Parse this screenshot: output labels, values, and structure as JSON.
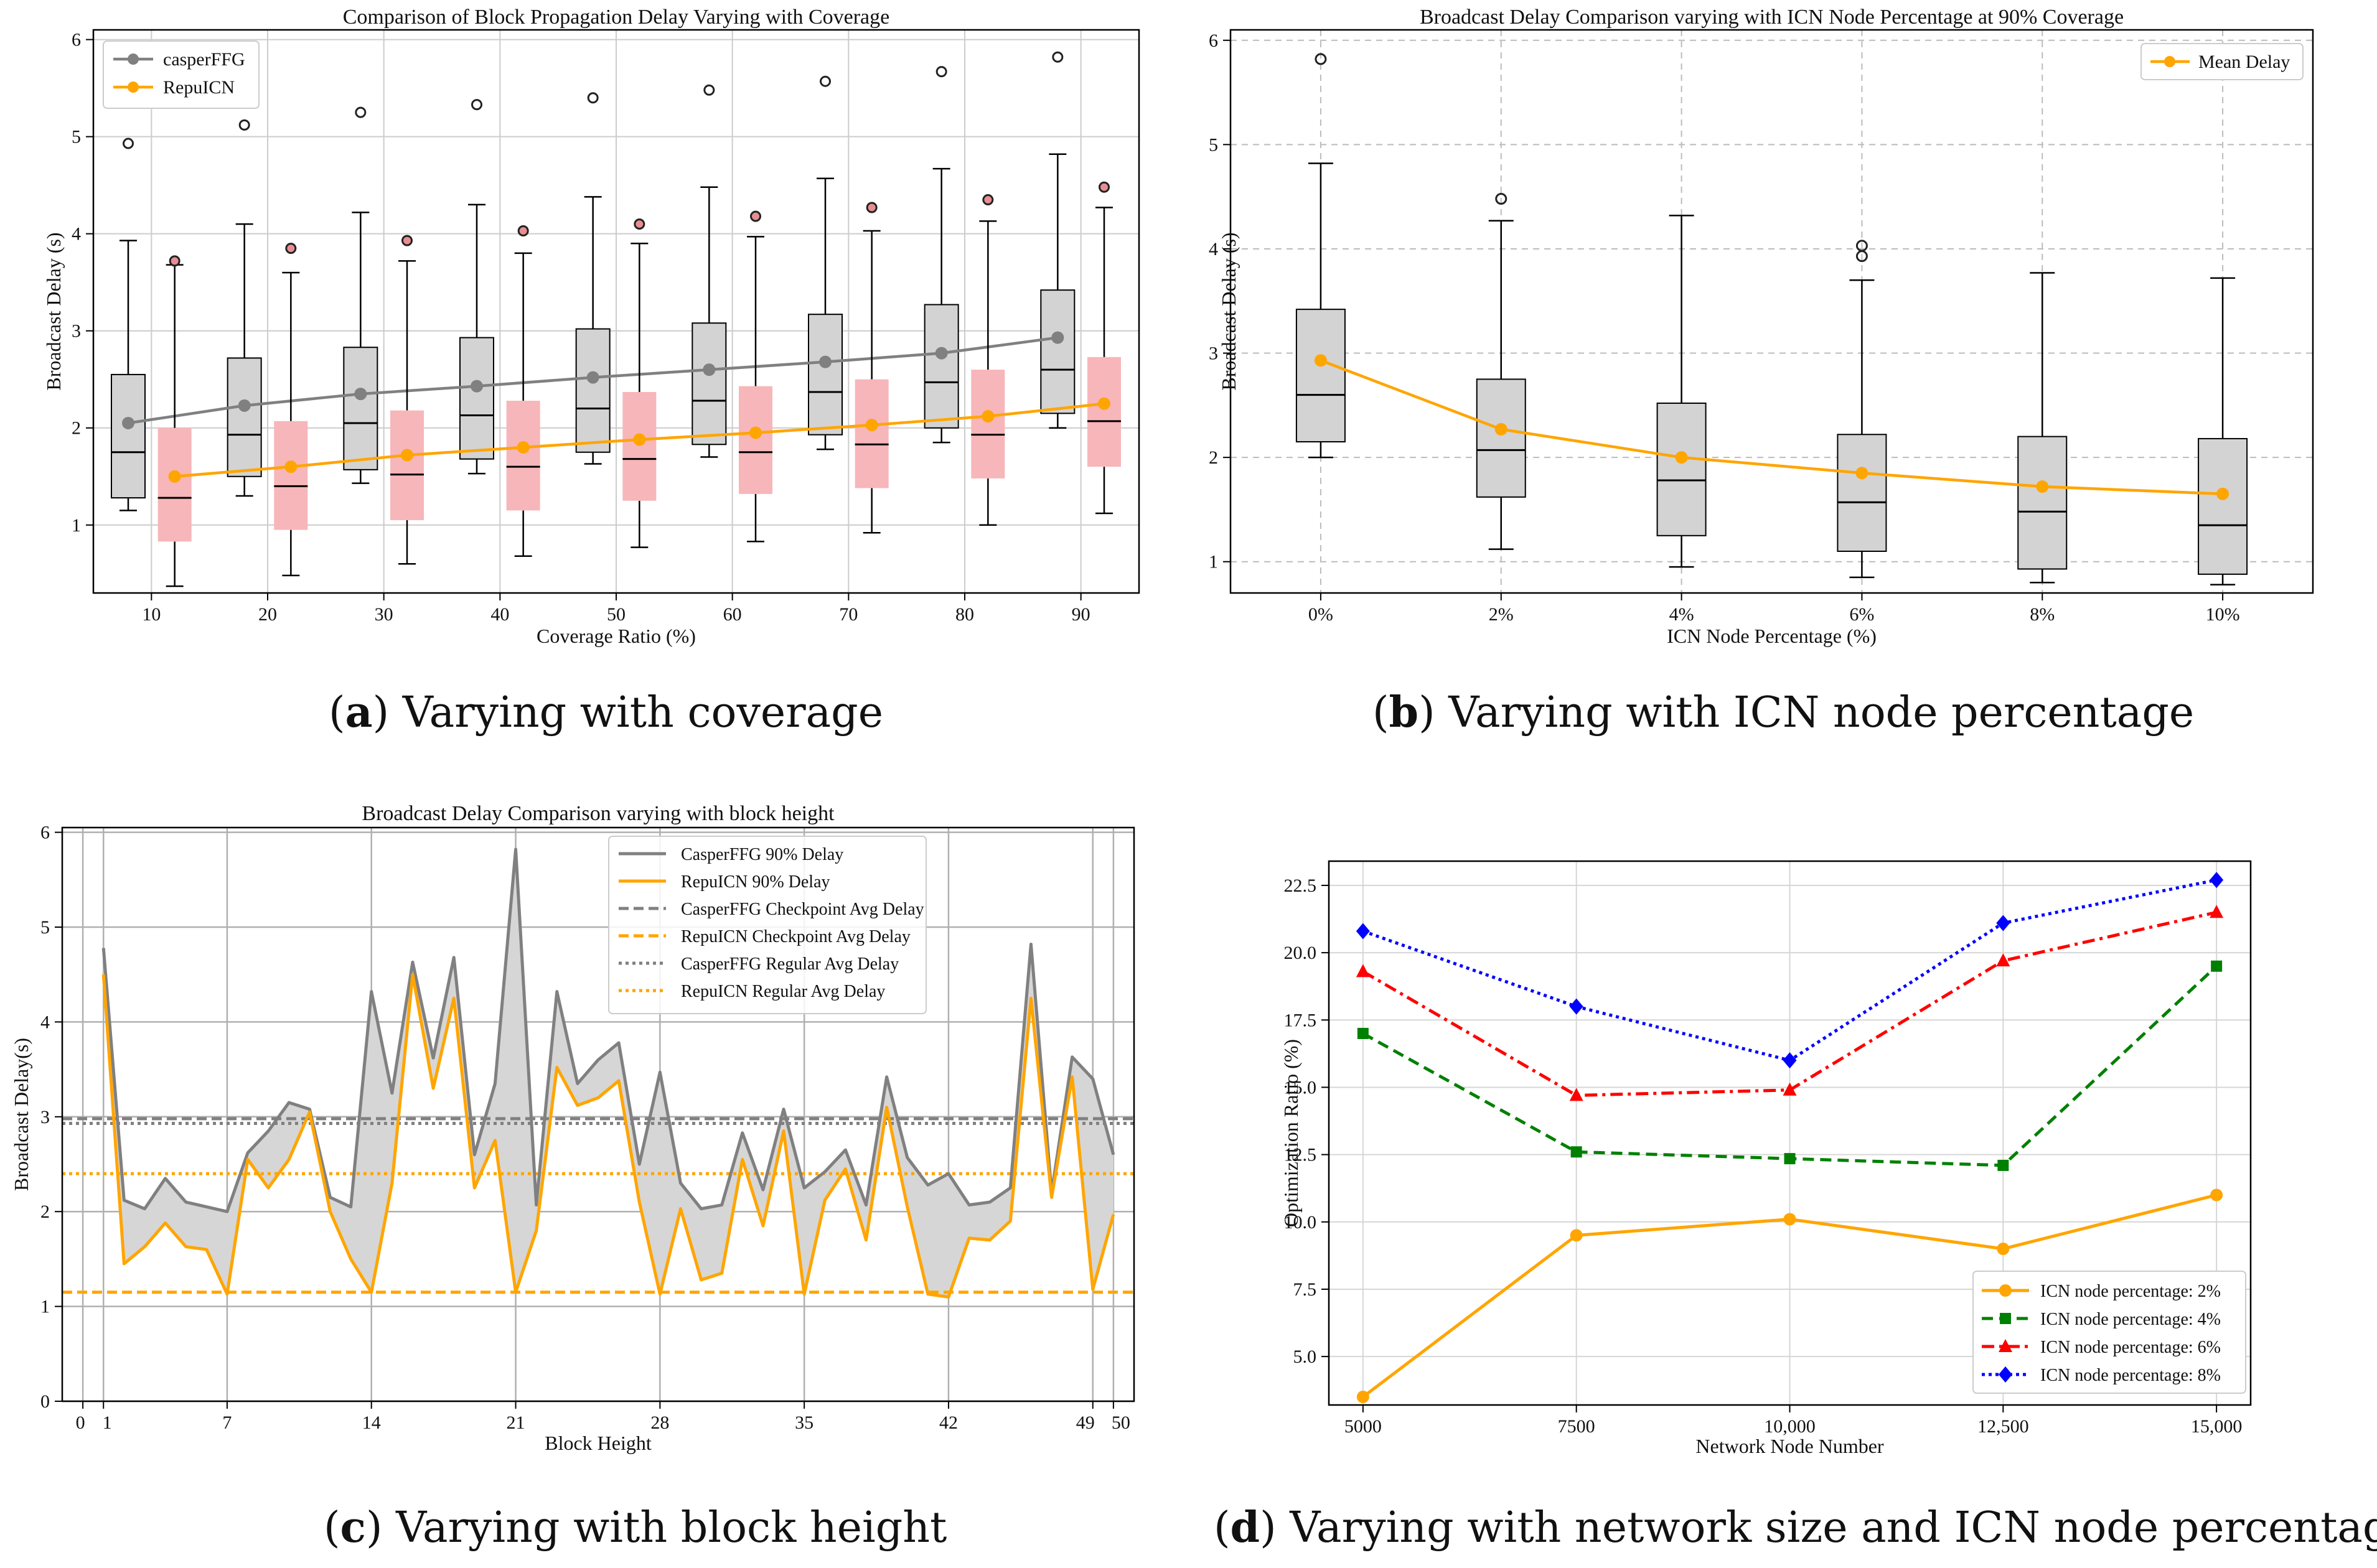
{
  "captions": {
    "a": {
      "letter": "a",
      "text": ") Varying with coverage"
    },
    "b": {
      "letter": "b",
      "text": ") Varying with ICN node percentage"
    },
    "c": {
      "letter": "c",
      "text": ") Varying with block height"
    },
    "d": {
      "letter": "d",
      "text": ") Varying with network size and ICN node percentage"
    }
  },
  "colors": {
    "casper": "#808080",
    "repu": "#FFA500",
    "box_grey": "#D3D3D3",
    "box_pink": "#F7B6BA",
    "green": "#008000",
    "red": "#FF0000",
    "blue": "#0000FF"
  },
  "chart_data": [
    {
      "id": "a",
      "type": "box",
      "title": "Comparison of Block Propagation Delay Varying with Coverage",
      "xlabel": "Coverage Ratio (%)",
      "ylabel": "Broadcast Delay (s)",
      "categories": [
        "10",
        "20",
        "30",
        "40",
        "50",
        "60",
        "70",
        "80",
        "90"
      ],
      "xlim": [
        5,
        95
      ],
      "ylim": [
        0.3,
        6.1
      ],
      "yticks": [
        1,
        2,
        3,
        4,
        5,
        6
      ],
      "legend": [
        "casperFFG",
        "RepuICN"
      ],
      "legend_loc": "upper left",
      "series": [
        {
          "name": "casperFFG",
          "positions": [
            8,
            18,
            28,
            38,
            48,
            58,
            68,
            78,
            88
          ],
          "whislo": [
            1.15,
            1.3,
            1.43,
            1.53,
            1.63,
            1.7,
            1.78,
            1.85,
            2.0
          ],
          "q1": [
            1.28,
            1.5,
            1.57,
            1.68,
            1.75,
            1.83,
            1.93,
            2.0,
            2.15
          ],
          "med": [
            1.75,
            1.93,
            2.05,
            2.13,
            2.2,
            2.28,
            2.37,
            2.47,
            2.6
          ],
          "q3": [
            2.55,
            2.72,
            2.83,
            2.93,
            3.02,
            3.08,
            3.17,
            3.27,
            3.42
          ],
          "whishi": [
            3.93,
            4.1,
            4.22,
            4.3,
            4.38,
            4.48,
            4.57,
            4.67,
            4.82
          ],
          "fliers": [
            4.93,
            5.12,
            5.25,
            5.33,
            5.4,
            5.48,
            5.57,
            5.67,
            5.82
          ],
          "means": [
            2.05,
            2.23,
            2.35,
            2.43,
            2.52,
            2.6,
            2.68,
            2.77,
            2.93
          ]
        },
        {
          "name": "RepuICN",
          "positions": [
            12,
            22,
            32,
            42,
            52,
            62,
            72,
            82,
            92
          ],
          "whislo": [
            0.37,
            0.48,
            0.6,
            0.68,
            0.77,
            0.83,
            0.92,
            1.0,
            1.12
          ],
          "q1": [
            0.83,
            0.95,
            1.05,
            1.15,
            1.25,
            1.32,
            1.38,
            1.48,
            1.6
          ],
          "med": [
            1.28,
            1.4,
            1.52,
            1.6,
            1.68,
            1.75,
            1.83,
            1.93,
            2.07
          ],
          "q3": [
            2.0,
            2.07,
            2.18,
            2.28,
            2.37,
            2.43,
            2.5,
            2.6,
            2.73
          ],
          "whishi": [
            3.68,
            3.6,
            3.72,
            3.8,
            3.9,
            3.97,
            4.03,
            4.13,
            4.27
          ],
          "fliers": [
            3.72,
            3.85,
            3.93,
            4.03,
            4.1,
            4.18,
            4.27,
            4.35,
            4.48
          ],
          "means": [
            1.5,
            1.6,
            1.72,
            1.8,
            1.88,
            1.95,
            2.03,
            2.12,
            2.25
          ]
        }
      ]
    },
    {
      "id": "b",
      "type": "box",
      "title": "Broadcast Delay Comparison varying with ICN Node Percentage at 90% Coverage",
      "xlabel": "ICN Node Percentage (%)",
      "ylabel": "Broadcast Delay (s)",
      "categories": [
        "0%",
        "2%",
        "4%",
        "6%",
        "8%",
        "10%"
      ],
      "ylim": [
        0.7,
        6.1
      ],
      "yticks": [
        1,
        2,
        3,
        4,
        5,
        6
      ],
      "legend": [
        "Mean Delay"
      ],
      "legend_loc": "upper right",
      "whislo": [
        2.0,
        1.12,
        0.95,
        0.85,
        0.8,
        0.78
      ],
      "q1": [
        2.15,
        1.62,
        1.25,
        1.1,
        0.93,
        0.88
      ],
      "med": [
        2.6,
        2.07,
        1.78,
        1.57,
        1.48,
        1.35
      ],
      "q3": [
        3.42,
        2.75,
        2.52,
        2.22,
        2.2,
        2.18
      ],
      "whishi": [
        4.82,
        4.27,
        4.32,
        3.7,
        3.77,
        3.72
      ],
      "fliers": [
        [
          5.82
        ],
        [
          4.48
        ],
        [],
        [
          3.93,
          4.03
        ],
        [],
        []
      ],
      "means": [
        2.93,
        2.27,
        2.0,
        1.85,
        1.72,
        1.65
      ]
    },
    {
      "id": "c",
      "type": "line",
      "title": "Broadcast Delay Comparison varying with block height",
      "xlabel": "Block Height",
      "ylabel": "Broadcast Delay(s)",
      "xlim": [
        -1,
        51
      ],
      "ylim": [
        0,
        6.05
      ],
      "xticks": [
        0,
        1,
        7,
        14,
        21,
        28,
        35,
        42,
        49,
        50
      ],
      "xtick_labels": [
        "0",
        "1",
        "7",
        "14",
        "21",
        "28",
        "35",
        "42",
        "49",
        "50"
      ],
      "yticks": [
        0,
        1,
        2,
        3,
        4,
        5,
        6
      ],
      "legend_loc": "upper right",
      "x": [
        1,
        2,
        3,
        4,
        5,
        6,
        7,
        8,
        9,
        10,
        11,
        12,
        13,
        14,
        15,
        16,
        17,
        18,
        19,
        20,
        21,
        22,
        23,
        24,
        25,
        26,
        27,
        28,
        29,
        30,
        31,
        32,
        33,
        34,
        35,
        36,
        37,
        38,
        39,
        40,
        41,
        42,
        43,
        44,
        45,
        46,
        47,
        48,
        49,
        50
      ],
      "series": [
        {
          "name": "CasperFFG 90% Delay",
          "style": "solid",
          "values": [
            4.78,
            2.12,
            2.03,
            2.35,
            2.1,
            2.05,
            2.0,
            2.62,
            2.85,
            3.15,
            3.08,
            2.15,
            2.05,
            4.32,
            3.25,
            4.63,
            3.62,
            4.68,
            2.6,
            3.35,
            5.82,
            2.07,
            4.32,
            3.35,
            3.6,
            3.78,
            2.5,
            3.47,
            2.3,
            2.03,
            2.07,
            2.83,
            2.23,
            3.08,
            2.25,
            2.42,
            2.65,
            2.07,
            3.42,
            2.57,
            2.28,
            2.4,
            2.07,
            2.1,
            2.25,
            4.82,
            2.2,
            3.63,
            3.4,
            2.6
          ]
        },
        {
          "name": "RepuICN 90% Delay",
          "style": "solid",
          "values": [
            4.5,
            1.45,
            1.63,
            1.88,
            1.63,
            1.6,
            1.13,
            2.55,
            2.25,
            2.55,
            3.05,
            2.0,
            1.5,
            1.15,
            2.3,
            4.5,
            3.3,
            4.25,
            2.25,
            2.75,
            1.15,
            1.8,
            3.52,
            3.12,
            3.2,
            3.38,
            2.1,
            1.13,
            2.03,
            1.28,
            1.35,
            2.55,
            1.85,
            2.85,
            1.13,
            2.12,
            2.45,
            1.7,
            3.1,
            2.05,
            1.13,
            1.1,
            1.72,
            1.7,
            1.9,
            4.25,
            2.15,
            3.42,
            1.18,
            1.97
          ]
        },
        {
          "name": "CasperFFG Checkpoint Avg Delay",
          "style": "dashed",
          "value": 2.98
        },
        {
          "name": "RepuICN Checkpoint Avg Delay",
          "style": "dashed",
          "value": 1.15
        },
        {
          "name": "CasperFFG Regular Avg Delay",
          "style": "dotted",
          "value": 2.93
        },
        {
          "name": "RepuICN Regular Avg Delay",
          "style": "dotted",
          "value": 2.4
        }
      ]
    },
    {
      "id": "d",
      "type": "line",
      "xlabel": "Network Node Number",
      "ylabel": "Optimization Ratio (%)",
      "categories": [
        "5000",
        "7500",
        "10,000",
        "12,500",
        "15,000"
      ],
      "x": [
        5000,
        7500,
        10000,
        12500,
        15000
      ],
      "xlim": [
        4600,
        15400
      ],
      "ylim": [
        3.2,
        23.4
      ],
      "yticks": [
        5.0,
        7.5,
        10.0,
        12.5,
        15.0,
        17.5,
        20.0,
        22.5
      ],
      "ytick_labels": [
        "5.0",
        "7.5",
        "10.0",
        "12.5",
        "15.0",
        "17.5",
        "20.0",
        "22.5"
      ],
      "legend_loc": "lower right",
      "series": [
        {
          "name": "ICN node percentage: 2%",
          "style": "solid",
          "marker": "circle",
          "values": [
            3.5,
            9.5,
            10.1,
            9.0,
            11.0
          ]
        },
        {
          "name": "ICN node percentage: 4%",
          "style": "dashed",
          "marker": "square",
          "values": [
            17.0,
            12.6,
            12.35,
            12.1,
            19.5
          ]
        },
        {
          "name": "ICN node percentage: 6%",
          "style": "dashdot",
          "marker": "triangle",
          "values": [
            19.3,
            14.7,
            14.9,
            19.7,
            21.5
          ]
        },
        {
          "name": "ICN node percentage: 8%",
          "style": "dotted",
          "marker": "diamond",
          "values": [
            20.8,
            18.0,
            16.0,
            21.1,
            22.7
          ]
        }
      ]
    }
  ]
}
